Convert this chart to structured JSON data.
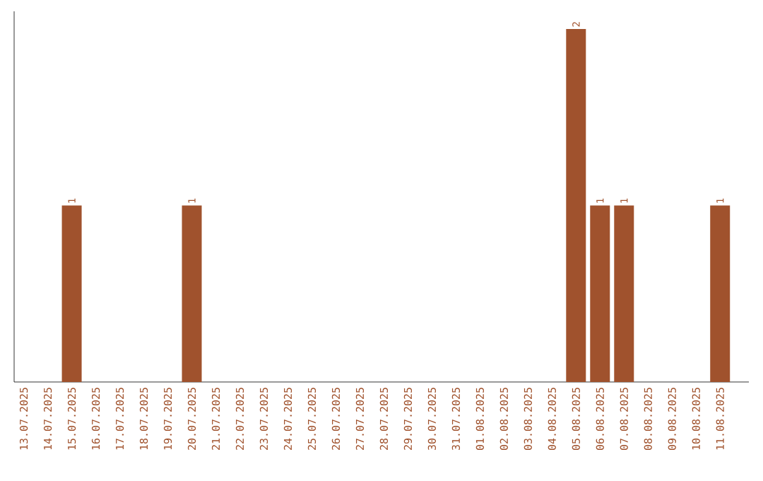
{
  "chart_data": {
    "type": "bar",
    "categories": [
      "13.07.2025",
      "14.07.2025",
      "15.07.2025",
      "16.07.2025",
      "17.07.2025",
      "18.07.2025",
      "19.07.2025",
      "20.07.2025",
      "21.07.2025",
      "22.07.2025",
      "23.07.2025",
      "24.07.2025",
      "25.07.2025",
      "26.07.2025",
      "27.07.2025",
      "28.07.2025",
      "29.07.2025",
      "30.07.2025",
      "31.07.2025",
      "01.08.2025",
      "02.08.2025",
      "03.08.2025",
      "04.08.2025",
      "05.08.2025",
      "06.08.2025",
      "07.08.2025",
      "08.08.2025",
      "09.08.2025",
      "10.08.2025",
      "11.08.2025"
    ],
    "values": [
      0,
      0,
      1,
      0,
      0,
      0,
      0,
      1,
      0,
      0,
      0,
      0,
      0,
      0,
      0,
      0,
      0,
      0,
      0,
      0,
      0,
      0,
      0,
      2,
      1,
      1,
      0,
      0,
      0,
      1
    ],
    "value_labels": [
      null,
      null,
      "1",
      null,
      null,
      null,
      null,
      "1",
      null,
      null,
      null,
      null,
      null,
      null,
      null,
      null,
      null,
      null,
      null,
      null,
      null,
      null,
      null,
      "2",
      "1",
      "1",
      null,
      null,
      null,
      "1"
    ],
    "color": "#a0522d"
  }
}
